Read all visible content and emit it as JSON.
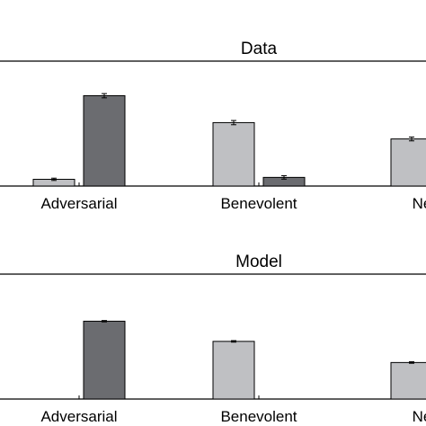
{
  "chart_data": [
    {
      "type": "bar",
      "title": "Data",
      "categories": [
        "Adversarial",
        "Benevolent",
        "Neutral"
      ],
      "series": [
        {
          "values": [
            0.07,
            0.66,
            0.49
          ],
          "errors": [
            0.012,
            0.022,
            0.02
          ],
          "color": "#bfc0c3"
        },
        {
          "values": [
            0.94,
            0.09,
            null
          ],
          "errors": [
            0.022,
            0.018,
            null
          ],
          "color": "#6b6c70"
        }
      ],
      "ylim": [
        0,
        1.3
      ],
      "grid": false
    },
    {
      "type": "bar",
      "title": "Model",
      "categories": [
        "Adversarial",
        "Benevolent",
        "Neutral"
      ],
      "series": [
        {
          "values": [
            0.0,
            0.6,
            0.38
          ],
          "errors": [
            0.0,
            0.008,
            0.008
          ],
          "color": "#bfc0c3"
        },
        {
          "values": [
            0.81,
            0.0,
            null
          ],
          "errors": [
            0.007,
            0.0,
            null
          ],
          "color": "#6b6c70"
        }
      ],
      "ylim": [
        0,
        1.3
      ],
      "grid": false
    }
  ]
}
